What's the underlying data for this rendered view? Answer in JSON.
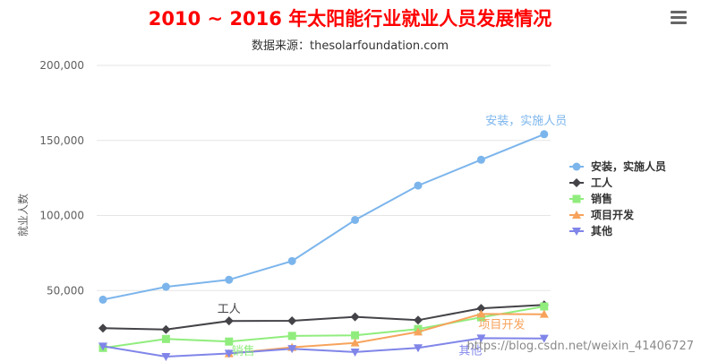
{
  "chart_data": {
    "type": "line",
    "title": "2010 ~ 2016 年太阳能行业就业人员发展情况",
    "subtitle": "数据来源：thesolarfoundation.com",
    "ylabel": "就业人数",
    "ylim": [
      0,
      200000
    ],
    "yticks": [
      50000,
      100000,
      150000,
      200000
    ],
    "ytick_labels": [
      "50,000",
      "100,000",
      "150,000",
      "200,000"
    ],
    "grid": true,
    "legend_position": "right",
    "x": [
      0,
      1,
      2,
      3,
      4,
      5,
      6,
      7,
      8
    ],
    "series": [
      {
        "name": "安装，实施人员",
        "color": "#7cb5ec",
        "marker": "circle",
        "values": [
          43934,
          52503,
          57177,
          69658,
          97031,
          119931,
          137133,
          154175,
          null
        ],
        "label": "安装，实施人员"
      },
      {
        "name": "工人",
        "color": "#434348",
        "marker": "diamond",
        "values": [
          24916,
          24064,
          29742,
          29851,
          32490,
          30282,
          38121,
          40434,
          null
        ],
        "label": "工人"
      },
      {
        "name": "销售",
        "color": "#90ed7d",
        "marker": "square",
        "values": [
          11744,
          17722,
          16005,
          19771,
          20185,
          24377,
          32147,
          39387,
          null
        ],
        "label": "销售"
      },
      {
        "name": "项目开发",
        "color": "#f7a35c",
        "marker": "triangle",
        "values": [
          null,
          null,
          7988,
          12169,
          15112,
          22452,
          34400,
          34227,
          null
        ],
        "label": "项目开发"
      },
      {
        "name": "其他",
        "color": "#8085e9",
        "marker": "triangle-down",
        "values": [
          12908,
          5948,
          8105,
          11248,
          8989,
          11816,
          18274,
          18111,
          null
        ],
        "label": "其他"
      }
    ]
  },
  "colors": {
    "title": "#ff0000",
    "subtitle": "#333333",
    "grid": "#e6e6e6"
  },
  "menu_icon": "hamburger-menu-icon",
  "watermark": "https://blog.csdn.net/weixin_41406727"
}
